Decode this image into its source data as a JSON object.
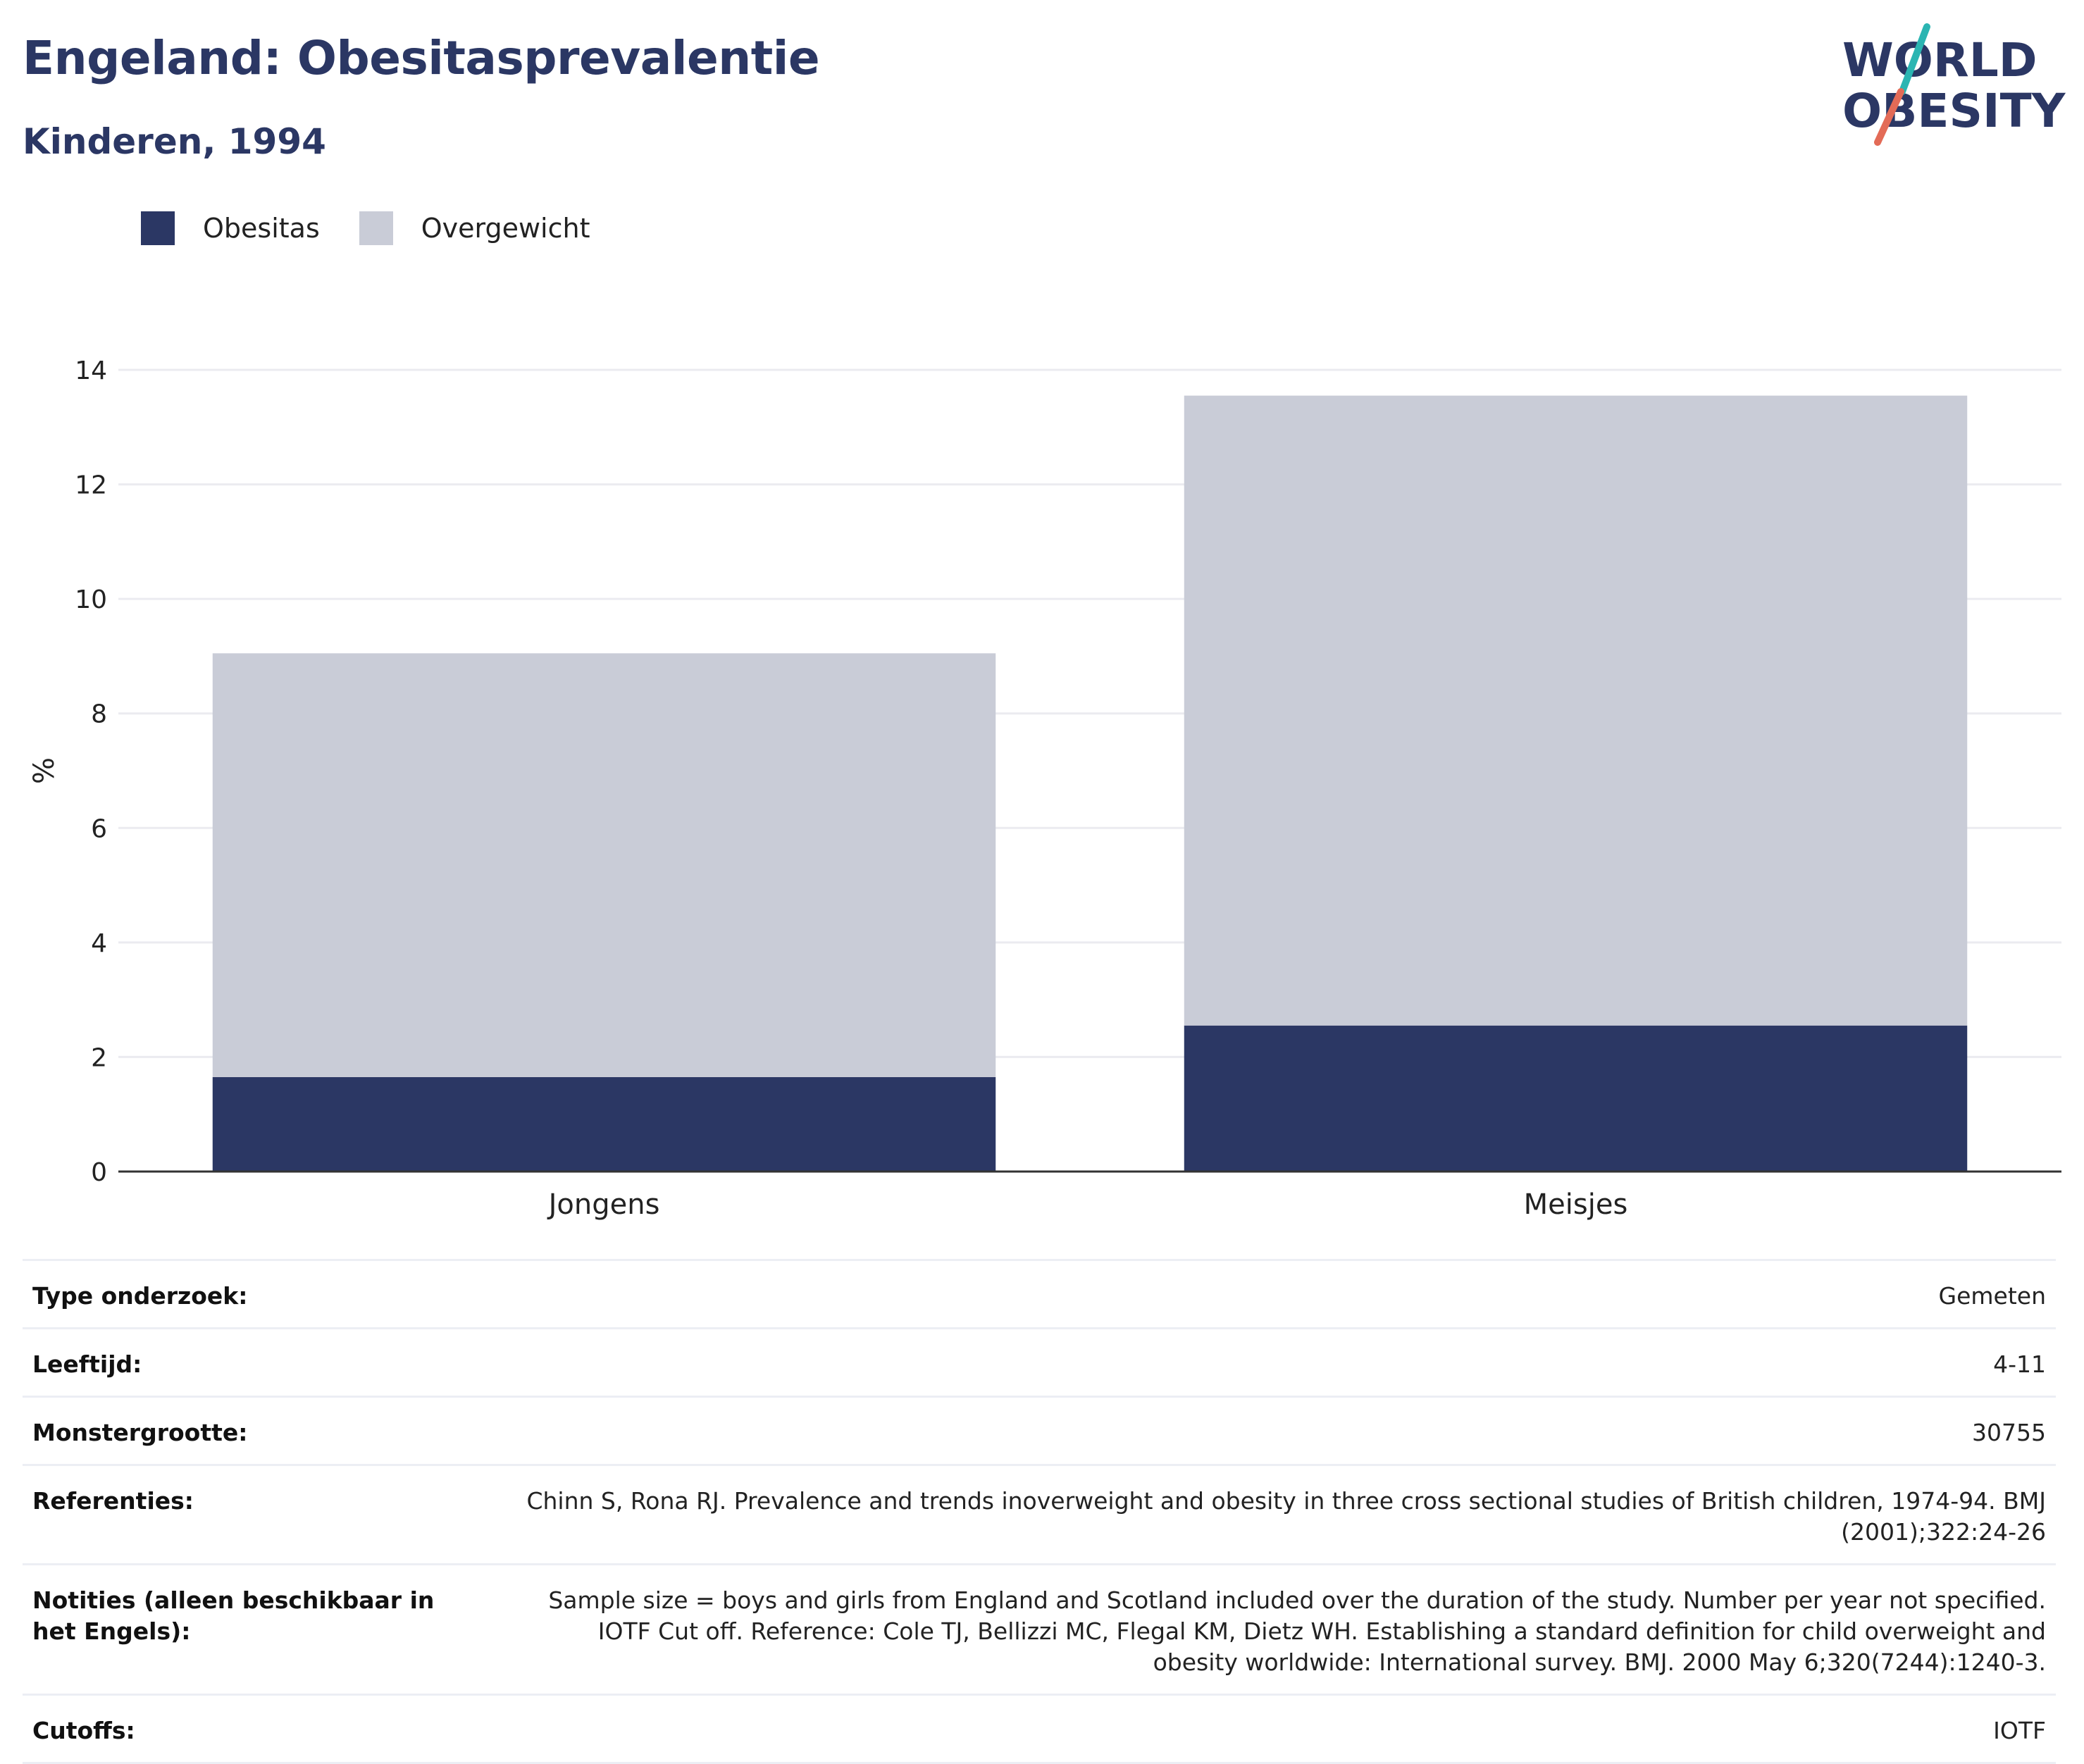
{
  "title": "Engeland: Obesitasprevalentie",
  "subtitle": "Kinderen, 1994",
  "logo": {
    "line1": "WORLD",
    "line2": "OBESITY",
    "accent_colors": [
      "#2bb5b2",
      "#e36b57"
    ]
  },
  "legend": [
    {
      "label": "Obesitas",
      "color": "#2b3764"
    },
    {
      "label": "Overgewicht",
      "color": "#c9ccd7"
    }
  ],
  "chart_data": {
    "type": "bar",
    "stacked": true,
    "categories": [
      "Jongens",
      "Meisjes"
    ],
    "series": [
      {
        "name": "Obesitas",
        "color": "#2b3764",
        "values": [
          1.65,
          2.55
        ]
      },
      {
        "name": "Overgewicht",
        "color": "#c9ccd7",
        "values": [
          7.4,
          11.0
        ]
      }
    ],
    "ylabel": "%",
    "ylim": [
      0,
      14
    ],
    "yticks": [
      0,
      2,
      4,
      6,
      8,
      10,
      12,
      14
    ],
    "grid": true,
    "legend_position": "top-left"
  },
  "details": [
    {
      "label": "Type onderzoek:",
      "value": "Gemeten"
    },
    {
      "label": "Leeftijd:",
      "value": "4-11"
    },
    {
      "label": "Monstergrootte:",
      "value": "30755"
    },
    {
      "label": "Referenties:",
      "value": "Chinn S, Rona RJ. Prevalence and trends inoverweight and obesity in three cross sectional studies of British children, 1974-94. BMJ (2001);322:24-26"
    },
    {
      "label": "Notities (alleen beschikbaar in het Engels):",
      "value": "Sample size = boys and girls from England and Scotland included over the duration of the study. Number per year not specified. IOTF Cut off. Reference: Cole TJ, Bellizzi MC, Flegal KM, Dietz WH. Establishing a standard definition for child overweight and obesity worldwide: International survey. BMJ. 2000 May 6;320(7244):1240-3."
    },
    {
      "label": "Cutoffs:",
      "value": "IOTF"
    }
  ]
}
